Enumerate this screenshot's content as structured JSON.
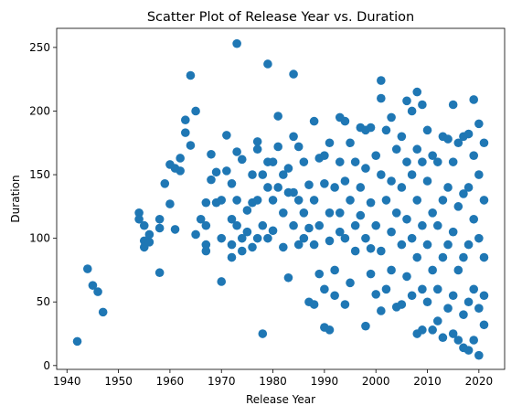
{
  "chart_data": {
    "type": "scatter",
    "title": "Scatter Plot of Release Year vs. Duration",
    "xlabel": "Release Year",
    "ylabel": "Duration",
    "xlim": [
      1938,
      2025
    ],
    "ylim": [
      -3,
      265
    ],
    "xticks": [
      1940,
      1950,
      1960,
      1970,
      1980,
      1990,
      2000,
      2010,
      2020
    ],
    "yticks": [
      0,
      50,
      100,
      150,
      200,
      250
    ],
    "grid": false,
    "marker_color": "#1f77b4",
    "points": [
      [
        1942,
        19
      ],
      [
        1944,
        76
      ],
      [
        1945,
        63
      ],
      [
        1946,
        58
      ],
      [
        1947,
        42
      ],
      [
        1954,
        120
      ],
      [
        1954,
        115
      ],
      [
        1955,
        110
      ],
      [
        1955,
        98
      ],
      [
        1955,
        93
      ],
      [
        1956,
        103
      ],
      [
        1956,
        97
      ],
      [
        1958,
        73
      ],
      [
        1958,
        115
      ],
      [
        1958,
        108
      ],
      [
        1959,
        143
      ],
      [
        1960,
        127
      ],
      [
        1960,
        158
      ],
      [
        1961,
        107
      ],
      [
        1961,
        155
      ],
      [
        1962,
        153
      ],
      [
        1962,
        163
      ],
      [
        1963,
        193
      ],
      [
        1963,
        183
      ],
      [
        1964,
        228
      ],
      [
        1964,
        173
      ],
      [
        1965,
        200
      ],
      [
        1965,
        103
      ],
      [
        1966,
        115
      ],
      [
        1967,
        110
      ],
      [
        1967,
        128
      ],
      [
        1967,
        95
      ],
      [
        1967,
        90
      ],
      [
        1968,
        146
      ],
      [
        1968,
        166
      ],
      [
        1969,
        152
      ],
      [
        1969,
        128
      ],
      [
        1970,
        66
      ],
      [
        1970,
        130
      ],
      [
        1970,
        100
      ],
      [
        1971,
        181
      ],
      [
        1971,
        153
      ],
      [
        1972,
        143
      ],
      [
        1972,
        115
      ],
      [
        1972,
        95
      ],
      [
        1972,
        85
      ],
      [
        1973,
        253
      ],
      [
        1973,
        168
      ],
      [
        1973,
        130
      ],
      [
        1973,
        110
      ],
      [
        1974,
        162
      ],
      [
        1974,
        100
      ],
      [
        1974,
        90
      ],
      [
        1975,
        122
      ],
      [
        1975,
        105
      ],
      [
        1976,
        150
      ],
      [
        1976,
        128
      ],
      [
        1976,
        93
      ],
      [
        1977,
        176
      ],
      [
        1977,
        170
      ],
      [
        1977,
        130
      ],
      [
        1977,
        100
      ],
      [
        1978,
        25
      ],
      [
        1978,
        150
      ],
      [
        1978,
        110
      ],
      [
        1979,
        237
      ],
      [
        1979,
        160
      ],
      [
        1979,
        140
      ],
      [
        1979,
        100
      ],
      [
        1980,
        160
      ],
      [
        1980,
        130
      ],
      [
        1980,
        106
      ],
      [
        1981,
        196
      ],
      [
        1981,
        172
      ],
      [
        1981,
        140
      ],
      [
        1982,
        150
      ],
      [
        1982,
        120
      ],
      [
        1982,
        93
      ],
      [
        1983,
        69
      ],
      [
        1983,
        155
      ],
      [
        1983,
        136
      ],
      [
        1984,
        229
      ],
      [
        1984,
        180
      ],
      [
        1984,
        136
      ],
      [
        1984,
        110
      ],
      [
        1985,
        172
      ],
      [
        1985,
        130
      ],
      [
        1985,
        95
      ],
      [
        1986,
        160
      ],
      [
        1986,
        120
      ],
      [
        1986,
        100
      ],
      [
        1987,
        50
      ],
      [
        1987,
        142
      ],
      [
        1987,
        108
      ],
      [
        1988,
        48
      ],
      [
        1988,
        192
      ],
      [
        1988,
        130
      ],
      [
        1988,
        95
      ],
      [
        1989,
        163
      ],
      [
        1989,
        72
      ],
      [
        1989,
        110
      ],
      [
        1990,
        30
      ],
      [
        1990,
        143
      ],
      [
        1990,
        165
      ],
      [
        1990,
        60
      ],
      [
        1991,
        28
      ],
      [
        1991,
        175
      ],
      [
        1991,
        120
      ],
      [
        1991,
        98
      ],
      [
        1992,
        55
      ],
      [
        1992,
        140
      ],
      [
        1992,
        75
      ],
      [
        1993,
        195
      ],
      [
        1993,
        160
      ],
      [
        1993,
        120
      ],
      [
        1993,
        105
      ],
      [
        1994,
        192
      ],
      [
        1994,
        48
      ],
      [
        1994,
        145
      ],
      [
        1994,
        100
      ],
      [
        1995,
        175
      ],
      [
        1995,
        65
      ],
      [
        1995,
        130
      ],
      [
        1996,
        160
      ],
      [
        1996,
        110
      ],
      [
        1996,
        90
      ],
      [
        1997,
        187
      ],
      [
        1997,
        140
      ],
      [
        1997,
        118
      ],
      [
        1998,
        185
      ],
      [
        1998,
        31
      ],
      [
        1998,
        155
      ],
      [
        1998,
        100
      ],
      [
        1999,
        187
      ],
      [
        1999,
        72
      ],
      [
        1999,
        128
      ],
      [
        1999,
        92
      ],
      [
        2000,
        56
      ],
      [
        2000,
        165
      ],
      [
        2000,
        110
      ],
      [
        2001,
        224
      ],
      [
        2001,
        210
      ],
      [
        2001,
        43
      ],
      [
        2001,
        150
      ],
      [
        2001,
        90
      ],
      [
        2002,
        185
      ],
      [
        2002,
        130
      ],
      [
        2002,
        60
      ],
      [
        2003,
        195
      ],
      [
        2003,
        145
      ],
      [
        2003,
        105
      ],
      [
        2003,
        75
      ],
      [
        2004,
        46
      ],
      [
        2004,
        170
      ],
      [
        2004,
        120
      ],
      [
        2005,
        180
      ],
      [
        2005,
        140
      ],
      [
        2005,
        95
      ],
      [
        2005,
        48
      ],
      [
        2006,
        208
      ],
      [
        2006,
        160
      ],
      [
        2006,
        115
      ],
      [
        2006,
        70
      ],
      [
        2007,
        200
      ],
      [
        2007,
        150
      ],
      [
        2007,
        100
      ],
      [
        2007,
        55
      ],
      [
        2008,
        215
      ],
      [
        2008,
        170
      ],
      [
        2008,
        130
      ],
      [
        2008,
        85
      ],
      [
        2008,
        25
      ],
      [
        2009,
        205
      ],
      [
        2009,
        160
      ],
      [
        2009,
        110
      ],
      [
        2009,
        60
      ],
      [
        2009,
        28
      ],
      [
        2010,
        185
      ],
      [
        2010,
        145
      ],
      [
        2010,
        95
      ],
      [
        2010,
        50
      ],
      [
        2011,
        165
      ],
      [
        2011,
        120
      ],
      [
        2011,
        75
      ],
      [
        2011,
        28
      ],
      [
        2012,
        160
      ],
      [
        2012,
        110
      ],
      [
        2012,
        60
      ],
      [
        2012,
        35
      ],
      [
        2013,
        180
      ],
      [
        2013,
        130
      ],
      [
        2013,
        85
      ],
      [
        2013,
        22
      ],
      [
        2014,
        178
      ],
      [
        2014,
        140
      ],
      [
        2014,
        95
      ],
      [
        2014,
        45
      ],
      [
        2015,
        205
      ],
      [
        2015,
        160
      ],
      [
        2015,
        105
      ],
      [
        2015,
        55
      ],
      [
        2015,
        25
      ],
      [
        2016,
        175
      ],
      [
        2016,
        125
      ],
      [
        2016,
        75
      ],
      [
        2016,
        20
      ],
      [
        2017,
        180
      ],
      [
        2017,
        135
      ],
      [
        2017,
        85
      ],
      [
        2017,
        40
      ],
      [
        2017,
        14
      ],
      [
        2018,
        182
      ],
      [
        2018,
        140
      ],
      [
        2018,
        95
      ],
      [
        2018,
        50
      ],
      [
        2018,
        12
      ],
      [
        2019,
        209
      ],
      [
        2019,
        165
      ],
      [
        2019,
        115
      ],
      [
        2019,
        60
      ],
      [
        2019,
        20
      ],
      [
        2020,
        190
      ],
      [
        2020,
        150
      ],
      [
        2020,
        100
      ],
      [
        2020,
        45
      ],
      [
        2020,
        8
      ],
      [
        2021,
        175
      ],
      [
        2021,
        130
      ],
      [
        2021,
        85
      ],
      [
        2021,
        32
      ],
      [
        2021,
        55
      ]
    ]
  }
}
